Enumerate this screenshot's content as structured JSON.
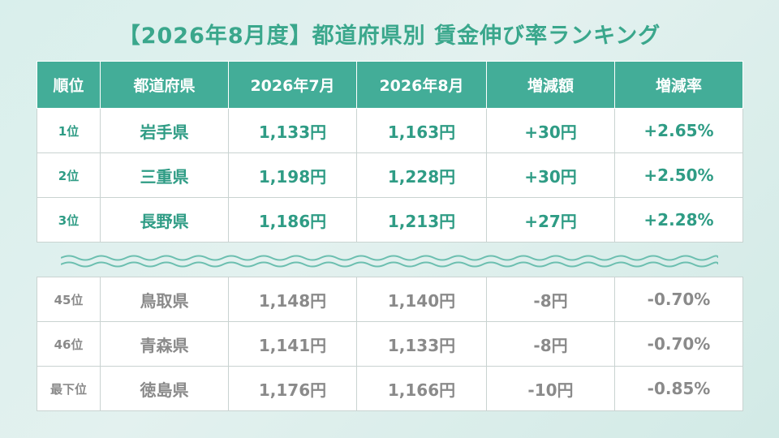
{
  "title": "【2026年8月度】都道府県別 賃金伸び率ランキング",
  "headers": [
    "順位",
    "都道府県",
    "2026年7月",
    "2026年8月",
    "増減額",
    "増減率"
  ],
  "top_rows": [
    {
      "rank": "1位",
      "pref": "岩手県",
      "jul": "1,133円",
      "aug": "1,163円",
      "diff": "+30円",
      "rate": "+2.65%"
    },
    {
      "rank": "2位",
      "pref": "三重県",
      "jul": "1,198円",
      "aug": "1,228円",
      "diff": "+30円",
      "rate": "+2.50%"
    },
    {
      "rank": "3位",
      "pref": "長野県",
      "jul": "1,186円",
      "aug": "1,213円",
      "diff": "+27円",
      "rate": "+2.28%"
    }
  ],
  "bottom_rows": [
    {
      "rank": "45位",
      "pref": "鳥取県",
      "jul": "1,148円",
      "aug": "1,140円",
      "diff": "-8円",
      "rate": "-0.70%"
    },
    {
      "rank": "46位",
      "pref": "青森県",
      "jul": "1,141円",
      "aug": "1,133円",
      "diff": "-8円",
      "rate": "-0.70%"
    },
    {
      "rank": "最下位",
      "pref": "徳島県",
      "jul": "1,176円",
      "aug": "1,166円",
      "diff": "-10円",
      "rate": "-0.85%"
    }
  ],
  "colors": {
    "accent": "#43ad98",
    "title": "#3aa78c",
    "top_text": "#2f9c85",
    "bottom_text": "#8a8a8a",
    "background": "#dcefec"
  }
}
